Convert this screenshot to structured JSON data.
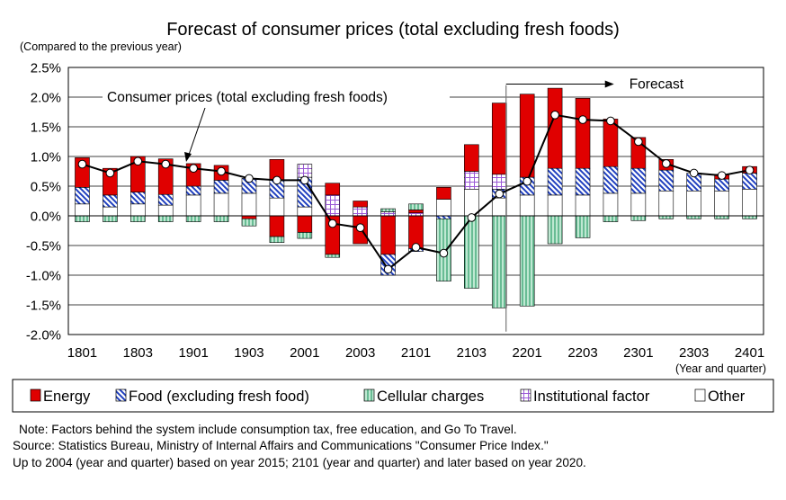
{
  "chart_data": {
    "type": "bar",
    "title": "Forecast of consumer prices (total excluding fresh foods)",
    "ylabel": "(Compared to the previous year)",
    "xlabel": "(Year and quarter)",
    "ylim": [
      -2.0,
      2.5
    ],
    "yticks": [
      "2.5%",
      "2.0%",
      "1.5%",
      "1.0%",
      "0.5%",
      "0.0%",
      "-0.5%",
      "-1.0%",
      "-1.5%",
      "-2.0%"
    ],
    "categories": [
      "1801",
      "1802",
      "1803",
      "1804",
      "1901",
      "1902",
      "1903",
      "1904",
      "2001",
      "2002",
      "2003",
      "2004",
      "2101",
      "2102",
      "2103",
      "2104",
      "2201",
      "2202",
      "2203",
      "2204",
      "2301",
      "2302",
      "2303",
      "2304",
      "2401"
    ],
    "xtick_labels": [
      "1801",
      "1803",
      "1901",
      "1903",
      "2001",
      "2003",
      "2101",
      "2103",
      "2201",
      "2203",
      "2301",
      "2303",
      "2401"
    ],
    "series": [
      {
        "name": "Other",
        "color": "#ffffff",
        "values": [
          0.2,
          0.15,
          0.2,
          0.18,
          0.35,
          0.38,
          0.38,
          0.3,
          0.15,
          0.0,
          0.0,
          0.0,
          0.0,
          0.28,
          0.45,
          0.3,
          0.35,
          0.35,
          0.35,
          0.38,
          0.38,
          0.42,
          0.42,
          0.42,
          0.45
        ]
      },
      {
        "name": "Food (excluding fresh food)",
        "color": "#1f3fbf",
        "values": [
          0.28,
          0.2,
          0.2,
          0.18,
          0.15,
          0.22,
          0.25,
          0.3,
          0.5,
          0.0,
          0.0,
          0.0,
          0.0,
          0.0,
          0.0,
          0.15,
          0.3,
          0.45,
          0.45,
          0.45,
          0.42,
          0.35,
          0.3,
          0.2,
          0.27
        ]
      },
      {
        "name": "Institutional factor",
        "color": "#9b59d6",
        "values": [
          0,
          0,
          0,
          0,
          0,
          0,
          0,
          0,
          0.22,
          0.35,
          0.15,
          0.07,
          0.05,
          0.0,
          0.3,
          0.25,
          0,
          0,
          0,
          0,
          0,
          0,
          0,
          0,
          0
        ]
      },
      {
        "name": "Energy",
        "color": "#e00000",
        "values": [
          0.5,
          0.45,
          0.6,
          0.6,
          0.38,
          0.25,
          0.0,
          0.35,
          0.0,
          0.2,
          0.1,
          0.0,
          0.05,
          0.2,
          0.45,
          1.2,
          1.4,
          1.35,
          1.18,
          0.8,
          0.52,
          0.18,
          0.0,
          0.08,
          0.11
        ]
      },
      {
        "name": "Energy",
        "color": "#e00000",
        "values": [
          0,
          0,
          0,
          0,
          0,
          0,
          -0.05,
          -0.35,
          -0.28,
          -0.65,
          -0.47,
          -0.65,
          -0.55,
          0,
          0,
          0,
          0,
          0,
          0,
          0,
          0,
          0,
          0,
          0,
          0
        ]
      },
      {
        "name": "Food (excluding fresh food)",
        "color": "#1f3fbf",
        "values": [
          0,
          0,
          0,
          0,
          0,
          0,
          0,
          0,
          0,
          0,
          0,
          -0.35,
          -0.05,
          -0.05,
          0,
          0,
          0,
          0,
          0,
          0,
          0,
          0,
          0,
          0,
          0
        ]
      },
      {
        "name": "Cellular charges",
        "color": "#2e9e6a",
        "values": [
          -0.1,
          -0.1,
          -0.1,
          -0.1,
          -0.1,
          -0.1,
          -0.12,
          -0.1,
          -0.1,
          -0.05,
          0.0,
          0.05,
          0.1,
          -1.05,
          -1.22,
          -1.55,
          -1.52,
          -0.47,
          -0.37,
          -0.1,
          -0.08,
          -0.05,
          -0.05,
          -0.05,
          -0.05
        ]
      },
      {
        "name": "Consumer prices (total excluding fresh foods)",
        "color": "#000000",
        "values": [
          0.87,
          0.72,
          0.92,
          0.87,
          0.8,
          0.75,
          0.63,
          0.6,
          0.6,
          -0.13,
          -0.2,
          -0.9,
          -0.53,
          -0.63,
          -0.03,
          0.37,
          0.58,
          1.7,
          1.62,
          1.6,
          1.25,
          0.88,
          0.72,
          0.68,
          0.77
        ]
      }
    ],
    "annotations": [
      {
        "text": "Consumer prices (total excluding fresh foods)"
      },
      {
        "text": "Forecast"
      }
    ],
    "legend": [
      "Energy",
      "Food (excluding fresh food)",
      "Cellular charges",
      "Institutional factor",
      "Other"
    ],
    "legend_position": "bottom"
  },
  "notes": [
    "Note: Factors behind the system include consumption tax, free education, and Go To Travel.",
    "Source: Statistics Bureau, Ministry of Internal Affairs and Communications \"Consumer Price Index.\"",
    "Up to 2004 (year and quarter) based on year 2015; 2101 (year and quarter) and later based on year 2020."
  ]
}
